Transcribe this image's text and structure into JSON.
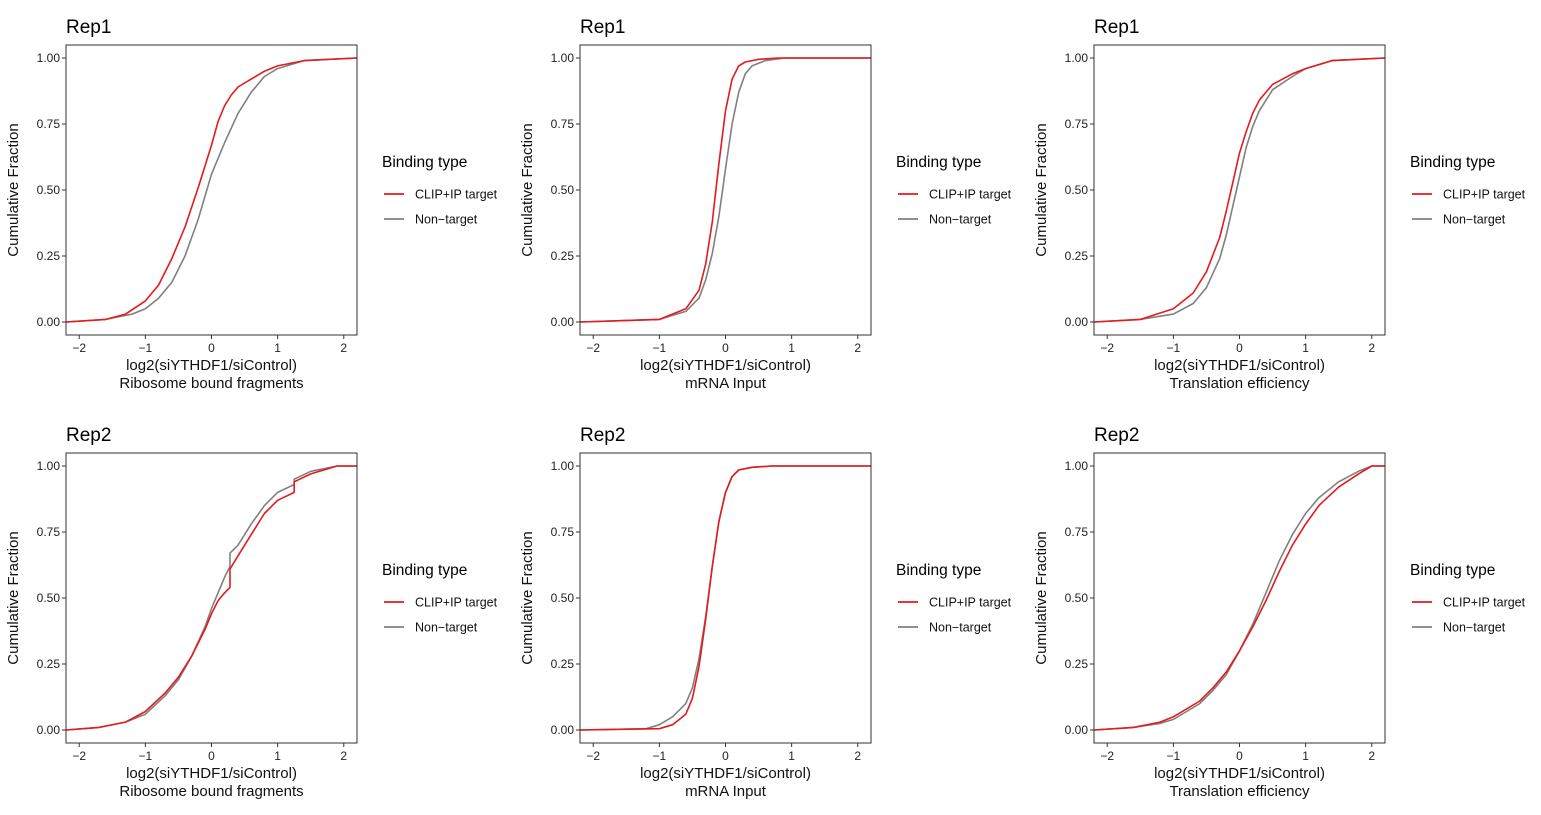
{
  "colors": {
    "target": "#e41a1c",
    "nontarget": "#808080"
  },
  "legend": {
    "title": "Binding type",
    "items": [
      {
        "label": "CLIP+IP target",
        "color": "#e41a1c"
      },
      {
        "label": "Non−target",
        "color": "#808080"
      }
    ]
  },
  "chart_data": [
    {
      "type": "line",
      "title": "Rep1",
      "xlabel": "log2(siYTHDF1/siControl)",
      "xlabel2": "Ribosome bound fragments",
      "ylabel": "Cumulative Fraction",
      "xlim": [
        -2.2,
        2.2
      ],
      "ylim": [
        0,
        1
      ],
      "xticks": [
        -2,
        -1,
        0,
        1,
        2
      ],
      "xtick_labels": [
        "−2",
        "−1",
        "0",
        "1",
        "2"
      ],
      "yticks": [
        0,
        0.25,
        0.5,
        0.75,
        1
      ],
      "ytick_labels": [
        "0.00",
        "0.25",
        "0.50",
        "0.75",
        "1.00"
      ],
      "series": [
        {
          "name": "CLIP+IP target",
          "color": "#e41a1c",
          "x": [
            -2.2,
            -1.6,
            -1.3,
            -1.0,
            -0.8,
            -0.6,
            -0.4,
            -0.2,
            -0.1,
            0.0,
            0.1,
            0.2,
            0.3,
            0.4,
            0.6,
            0.8,
            1.0,
            1.4,
            2.2
          ],
          "y": [
            0.0,
            0.01,
            0.03,
            0.08,
            0.14,
            0.24,
            0.36,
            0.51,
            0.59,
            0.67,
            0.76,
            0.82,
            0.86,
            0.89,
            0.92,
            0.95,
            0.97,
            0.99,
            1.0
          ]
        },
        {
          "name": "Non−target",
          "color": "#808080",
          "x": [
            -2.2,
            -1.6,
            -1.2,
            -1.0,
            -0.8,
            -0.6,
            -0.4,
            -0.2,
            0.0,
            0.2,
            0.4,
            0.6,
            0.8,
            1.0,
            1.4,
            2.2
          ],
          "y": [
            0.0,
            0.01,
            0.03,
            0.05,
            0.09,
            0.15,
            0.25,
            0.39,
            0.56,
            0.68,
            0.79,
            0.87,
            0.93,
            0.96,
            0.99,
            1.0
          ]
        }
      ]
    },
    {
      "type": "line",
      "title": "Rep1",
      "xlabel": "log2(siYTHDF1/siControl)",
      "xlabel2": "mRNA Input",
      "ylabel": "Cumulative Fraction",
      "xlim": [
        -2.2,
        2.2
      ],
      "ylim": [
        0,
        1
      ],
      "xticks": [
        -2,
        -1,
        0,
        1,
        2
      ],
      "xtick_labels": [
        "−2",
        "−1",
        "0",
        "1",
        "2"
      ],
      "yticks": [
        0,
        0.25,
        0.5,
        0.75,
        1
      ],
      "ytick_labels": [
        "0.00",
        "0.25",
        "0.50",
        "0.75",
        "1.00"
      ],
      "series": [
        {
          "name": "CLIP+IP target",
          "color": "#e41a1c",
          "x": [
            -2.2,
            -1.0,
            -0.6,
            -0.4,
            -0.3,
            -0.2,
            -0.1,
            0.0,
            0.1,
            0.2,
            0.3,
            0.5,
            0.8,
            2.2
          ],
          "y": [
            0.0,
            0.01,
            0.05,
            0.12,
            0.22,
            0.38,
            0.6,
            0.8,
            0.92,
            0.97,
            0.985,
            0.995,
            1.0,
            1.0
          ]
        },
        {
          "name": "Non−target",
          "color": "#808080",
          "x": [
            -2.2,
            -1.0,
            -0.6,
            -0.4,
            -0.3,
            -0.2,
            -0.1,
            0.0,
            0.1,
            0.2,
            0.3,
            0.4,
            0.6,
            0.9,
            2.2
          ],
          "y": [
            0.0,
            0.01,
            0.04,
            0.09,
            0.16,
            0.26,
            0.4,
            0.58,
            0.75,
            0.87,
            0.94,
            0.97,
            0.99,
            1.0,
            1.0
          ]
        }
      ]
    },
    {
      "type": "line",
      "title": "Rep1",
      "xlabel": "log2(siYTHDF1/siControl)",
      "xlabel2": "Translation efficiency",
      "ylabel": "Cumulative Fraction",
      "xlim": [
        -2.2,
        2.2
      ],
      "ylim": [
        0,
        1
      ],
      "xticks": [
        -2,
        -1,
        0,
        1,
        2
      ],
      "xtick_labels": [
        "−2",
        "−1",
        "0",
        "1",
        "2"
      ],
      "yticks": [
        0,
        0.25,
        0.5,
        0.75,
        1
      ],
      "ytick_labels": [
        "0.00",
        "0.25",
        "0.50",
        "0.75",
        "1.00"
      ],
      "series": [
        {
          "name": "CLIP+IP target",
          "color": "#e41a1c",
          "x": [
            -2.2,
            -1.5,
            -1.0,
            -0.7,
            -0.5,
            -0.3,
            -0.2,
            -0.1,
            0.0,
            0.1,
            0.2,
            0.3,
            0.5,
            0.8,
            1.0,
            1.4,
            2.2
          ],
          "y": [
            0.0,
            0.01,
            0.05,
            0.11,
            0.19,
            0.32,
            0.42,
            0.53,
            0.64,
            0.72,
            0.79,
            0.84,
            0.9,
            0.94,
            0.96,
            0.99,
            1.0
          ]
        },
        {
          "name": "Non−target",
          "color": "#808080",
          "x": [
            -2.2,
            -1.5,
            -1.0,
            -0.7,
            -0.5,
            -0.3,
            -0.2,
            -0.1,
            0.0,
            0.1,
            0.2,
            0.3,
            0.5,
            0.8,
            1.0,
            1.4,
            2.2
          ],
          "y": [
            0.0,
            0.01,
            0.03,
            0.07,
            0.13,
            0.24,
            0.33,
            0.44,
            0.55,
            0.66,
            0.74,
            0.8,
            0.88,
            0.93,
            0.96,
            0.99,
            1.0
          ]
        }
      ]
    },
    {
      "type": "line",
      "title": "Rep2",
      "xlabel": "log2(siYTHDF1/siControl)",
      "xlabel2": "Ribosome bound fragments",
      "ylabel": "Cumulative Fraction",
      "xlim": [
        -2.2,
        2.2
      ],
      "ylim": [
        0,
        1
      ],
      "xticks": [
        -2,
        -1,
        0,
        1,
        2
      ],
      "xtick_labels": [
        "−2",
        "−1",
        "0",
        "1",
        "2"
      ],
      "yticks": [
        0,
        0.25,
        0.5,
        0.75,
        1
      ],
      "ytick_labels": [
        "0.00",
        "0.25",
        "0.50",
        "0.75",
        "1.00"
      ],
      "series": [
        {
          "name": "CLIP+IP target",
          "color": "#e41a1c",
          "x": [
            -2.2,
            -1.7,
            -1.3,
            -1.0,
            -0.7,
            -0.5,
            -0.3,
            -0.1,
            0.0,
            0.1,
            0.2,
            0.28,
            0.28,
            0.4,
            0.6,
            0.8,
            1.0,
            1.25,
            1.25,
            1.5,
            1.9,
            2.2
          ],
          "y": [
            0.0,
            0.01,
            0.03,
            0.07,
            0.14,
            0.2,
            0.28,
            0.38,
            0.44,
            0.49,
            0.52,
            0.54,
            0.61,
            0.66,
            0.74,
            0.82,
            0.87,
            0.9,
            0.94,
            0.97,
            1.0,
            1.0
          ]
        },
        {
          "name": "Non−target",
          "color": "#808080",
          "x": [
            -2.2,
            -1.7,
            -1.3,
            -1.0,
            -0.7,
            -0.5,
            -0.3,
            -0.1,
            0.0,
            0.1,
            0.2,
            0.28,
            0.28,
            0.4,
            0.6,
            0.8,
            1.0,
            1.25,
            1.25,
            1.5,
            1.9,
            2.2
          ],
          "y": [
            0.0,
            0.01,
            0.03,
            0.06,
            0.13,
            0.19,
            0.28,
            0.39,
            0.46,
            0.52,
            0.58,
            0.62,
            0.67,
            0.7,
            0.78,
            0.85,
            0.9,
            0.93,
            0.95,
            0.98,
            1.0,
            1.0
          ]
        }
      ]
    },
    {
      "type": "line",
      "title": "Rep2",
      "xlabel": "log2(siYTHDF1/siControl)",
      "xlabel2": "mRNA Input",
      "ylabel": "Cumulative Fraction",
      "xlim": [
        -2.2,
        2.2
      ],
      "ylim": [
        0,
        1
      ],
      "xticks": [
        -2,
        -1,
        0,
        1,
        2
      ],
      "xtick_labels": [
        "−2",
        "−1",
        "0",
        "1",
        "2"
      ],
      "yticks": [
        0,
        0.25,
        0.5,
        0.75,
        1
      ],
      "ytick_labels": [
        "0.00",
        "0.25",
        "0.50",
        "0.75",
        "1.00"
      ],
      "series": [
        {
          "name": "CLIP+IP target",
          "color": "#e41a1c",
          "x": [
            -2.2,
            -1.0,
            -0.8,
            -0.6,
            -0.5,
            -0.4,
            -0.3,
            -0.2,
            -0.1,
            0.0,
            0.1,
            0.2,
            0.4,
            0.7,
            2.2
          ],
          "y": [
            0.0,
            0.005,
            0.02,
            0.06,
            0.12,
            0.24,
            0.42,
            0.62,
            0.79,
            0.9,
            0.96,
            0.985,
            0.995,
            1.0,
            1.0
          ]
        },
        {
          "name": "Non−target",
          "color": "#808080",
          "x": [
            -2.2,
            -1.2,
            -1.0,
            -0.8,
            -0.6,
            -0.5,
            -0.4,
            -0.3,
            -0.2,
            -0.1,
            0.0,
            0.1,
            0.2,
            0.4,
            0.7,
            2.2
          ],
          "y": [
            0.0,
            0.005,
            0.02,
            0.05,
            0.1,
            0.16,
            0.27,
            0.43,
            0.62,
            0.79,
            0.9,
            0.96,
            0.985,
            0.995,
            1.0,
            1.0
          ]
        }
      ]
    },
    {
      "type": "line",
      "title": "Rep2",
      "xlabel": "log2(siYTHDF1/siControl)",
      "xlabel2": "Translation efficiency",
      "ylabel": "Cumulative Fraction",
      "xlim": [
        -2.2,
        2.2
      ],
      "ylim": [
        0,
        1
      ],
      "xticks": [
        -2,
        -1,
        0,
        1,
        2
      ],
      "xtick_labels": [
        "−2",
        "−1",
        "0",
        "1",
        "2"
      ],
      "yticks": [
        0,
        0.25,
        0.5,
        0.75,
        1
      ],
      "ytick_labels": [
        "0.00",
        "0.25",
        "0.50",
        "0.75",
        "1.00"
      ],
      "series": [
        {
          "name": "CLIP+IP target",
          "color": "#e41a1c",
          "x": [
            -2.2,
            -1.6,
            -1.2,
            -1.0,
            -0.8,
            -0.6,
            -0.4,
            -0.2,
            0.0,
            0.2,
            0.4,
            0.6,
            0.8,
            1.0,
            1.2,
            1.5,
            1.8,
            2.0,
            2.2
          ],
          "y": [
            0.0,
            0.01,
            0.03,
            0.05,
            0.08,
            0.11,
            0.16,
            0.22,
            0.3,
            0.39,
            0.49,
            0.6,
            0.7,
            0.78,
            0.85,
            0.92,
            0.97,
            1.0,
            1.0
          ]
        },
        {
          "name": "Non−target",
          "color": "#808080",
          "x": [
            -2.2,
            -1.6,
            -1.2,
            -1.0,
            -0.8,
            -0.6,
            -0.4,
            -0.2,
            0.0,
            0.2,
            0.4,
            0.6,
            0.8,
            1.0,
            1.2,
            1.5,
            1.8,
            2.0,
            2.2
          ],
          "y": [
            0.0,
            0.01,
            0.025,
            0.04,
            0.07,
            0.1,
            0.15,
            0.21,
            0.3,
            0.4,
            0.52,
            0.64,
            0.74,
            0.82,
            0.88,
            0.94,
            0.98,
            1.0,
            1.0
          ]
        }
      ]
    }
  ]
}
